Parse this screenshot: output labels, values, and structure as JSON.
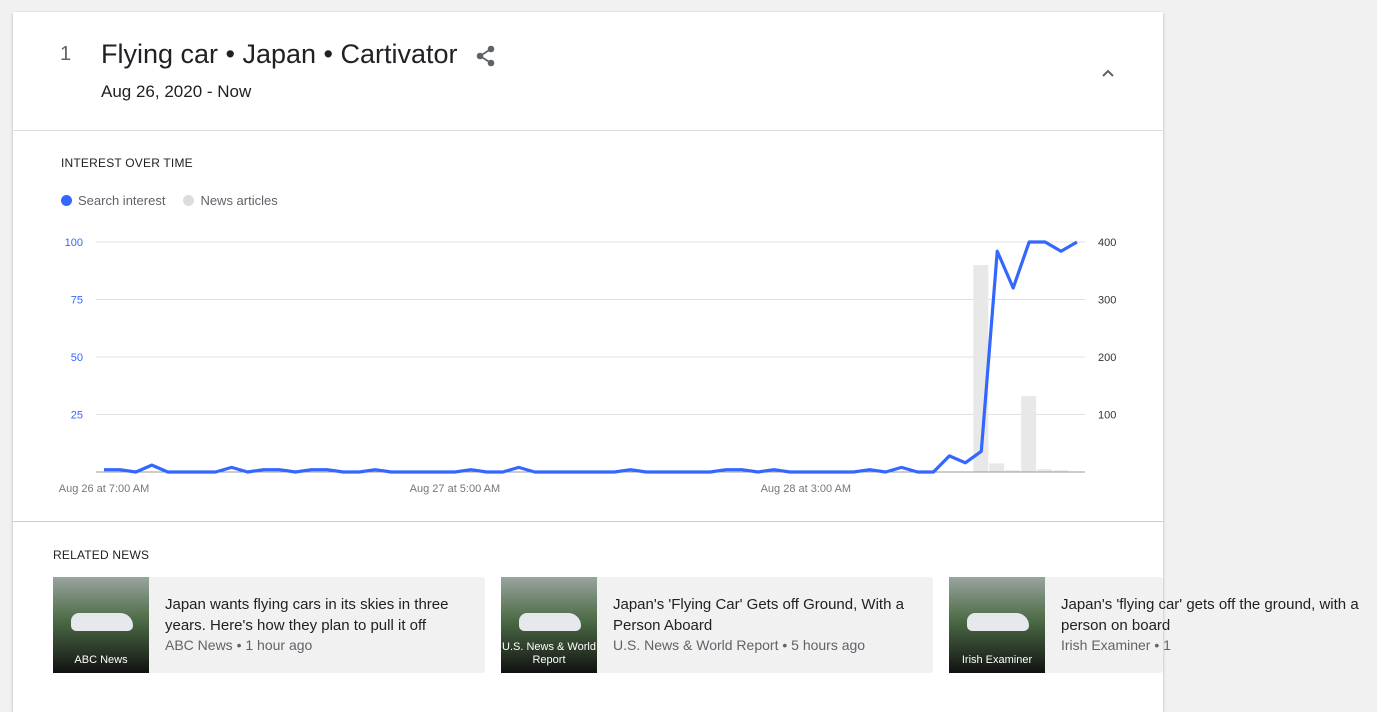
{
  "header": {
    "rank": "1",
    "title": "Flying car • Japan • Cartivator",
    "date_range": "Aug 26, 2020 - Now"
  },
  "interest": {
    "section_title": "INTEREST OVER TIME",
    "legend": [
      {
        "label": "Search interest",
        "color": "#3367ff"
      },
      {
        "label": "News articles",
        "color": "#dcdcdc"
      }
    ]
  },
  "chart_data": {
    "type": "line+bar",
    "x_tick_labels": [
      "Aug 26 at 7:00 AM",
      "Aug 27 at 5:00 AM",
      "Aug 28 at 3:00 AM"
    ],
    "y_left_ticks": [
      "100",
      "75",
      "50",
      "25"
    ],
    "y_left_range": [
      0,
      100
    ],
    "y_right_ticks": [
      "400",
      "300",
      "200",
      "100"
    ],
    "y_right_range": [
      0,
      400
    ],
    "series": [
      {
        "name": "Search interest",
        "axis": "left",
        "type": "line",
        "color": "#3367ff",
        "values": [
          1,
          1,
          0,
          3,
          0,
          0,
          0,
          0,
          2,
          0,
          1,
          1,
          0,
          1,
          1,
          0,
          0,
          1,
          0,
          0,
          0,
          0,
          0,
          1,
          0,
          0,
          2,
          0,
          0,
          0,
          0,
          0,
          0,
          1,
          0,
          0,
          0,
          0,
          0,
          1,
          1,
          0,
          1,
          0,
          0,
          0,
          0,
          0,
          1,
          0,
          2,
          0,
          0,
          7,
          4,
          9,
          96,
          80,
          100,
          100,
          96,
          100
        ]
      },
      {
        "name": "News articles",
        "axis": "right",
        "type": "bar",
        "color": "#e8e8e8",
        "values": [
          0,
          0,
          0,
          0,
          0,
          0,
          0,
          0,
          0,
          0,
          0,
          0,
          0,
          0,
          0,
          0,
          0,
          0,
          0,
          0,
          0,
          0,
          0,
          0,
          0,
          0,
          0,
          0,
          0,
          0,
          0,
          0,
          0,
          0,
          0,
          0,
          0,
          0,
          0,
          0,
          0,
          0,
          0,
          0,
          0,
          0,
          0,
          0,
          0,
          0,
          0,
          0,
          0,
          0,
          0,
          360,
          15,
          3,
          132,
          5,
          3,
          0
        ]
      }
    ],
    "grid": true
  },
  "related": {
    "section_title": "RELATED NEWS",
    "items": [
      {
        "source_badge": "ABC News",
        "title": "Japan wants flying cars in its skies in three years. Here's how they plan to pull it off",
        "meta": "ABC News • 1 hour ago"
      },
      {
        "source_badge": "U.S. News & World Report",
        "title": "Japan's 'Flying Car' Gets off Ground, With a Person Aboard",
        "meta": "U.S. News & World Report • 5 hours ago"
      },
      {
        "source_badge": "Irish Examiner",
        "title": "Japan's 'flying car' gets off the ground, with a person on board",
        "meta": "Irish Examiner • 1"
      }
    ]
  }
}
